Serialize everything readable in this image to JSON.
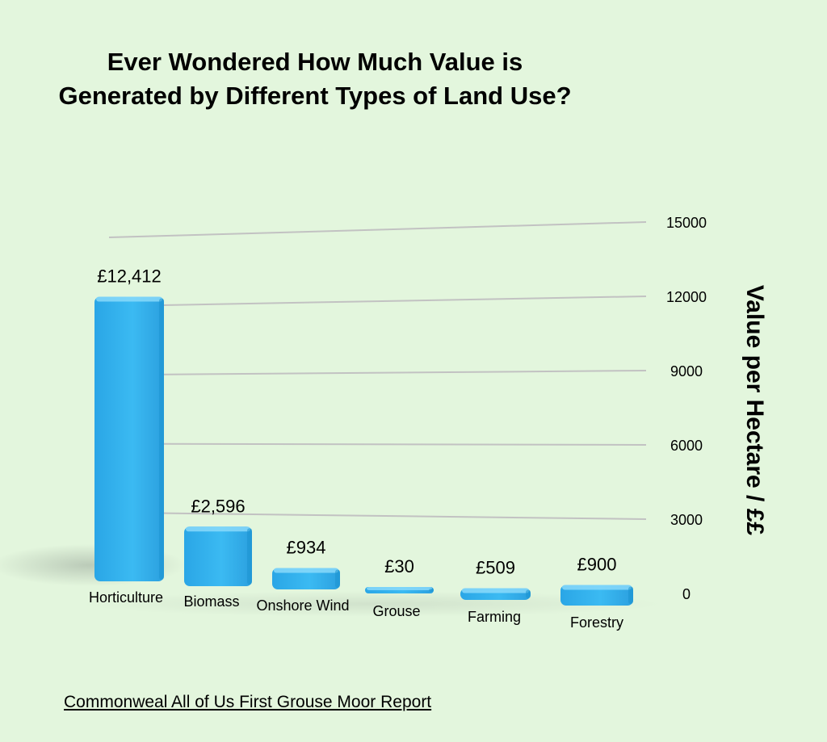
{
  "title": "Ever Wondered How Much Value is Generated by Different Types of Land Use?",
  "source": "Commonweal All of Us First Grouse Moor Report",
  "colors": {
    "background": "#e3f6dd",
    "bar": "#35b4ee",
    "bar_dark": "#1c93d0",
    "bar_light": "#8fdcfb",
    "grid": "#c2c2c2"
  },
  "chart_data": {
    "type": "bar",
    "categories": [
      "Horticulture",
      "Biomass",
      "Onshore Wind",
      "Grouse",
      "Farming",
      "Forestry"
    ],
    "values": [
      12412,
      2596,
      934,
      30,
      509,
      900
    ],
    "data_labels": [
      "£12,412",
      "£2,596",
      "£934",
      "£30",
      "£509",
      "£900"
    ],
    "ylabel": "Value per Hectare / ££",
    "ylim": [
      0,
      15000
    ],
    "yticks": [
      0,
      3000,
      6000,
      9000,
      12000,
      15000
    ],
    "ytick_labels": [
      "0",
      "3000",
      "6000",
      "9000",
      "12000",
      "15000"
    ],
    "grid": true,
    "legend": "none"
  }
}
